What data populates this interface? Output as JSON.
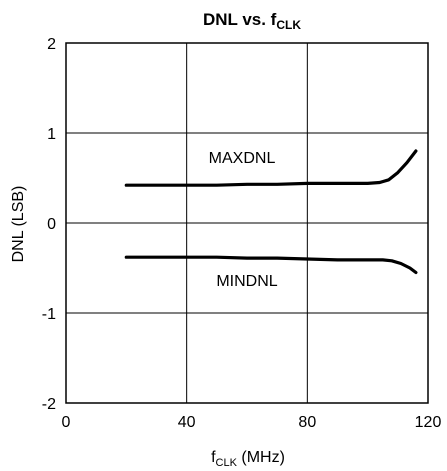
{
  "chart_data": {
    "type": "line",
    "title": {
      "main": "DNL vs. f",
      "sub": "CLK"
    },
    "xlabel": {
      "main": "f",
      "sub": "CLK",
      "rest": " (MHz)"
    },
    "ylabel": "DNL (LSB)",
    "xlim": [
      0,
      120
    ],
    "ylim": [
      -2,
      2
    ],
    "xticks": [
      0,
      40,
      80,
      120
    ],
    "yticks": [
      -2,
      -1,
      0,
      1,
      2
    ],
    "xtick_labels": [
      "0",
      "40",
      "80",
      "120"
    ],
    "ytick_labels": [
      "-2",
      "-1",
      "0",
      "1",
      "2"
    ],
    "grid": true,
    "series": [
      {
        "name": "MAXDNL",
        "x": [
          20,
          30,
          40,
          50,
          60,
          70,
          80,
          90,
          95,
          100,
          104,
          107,
          110,
          113,
          116
        ],
        "y": [
          0.42,
          0.42,
          0.42,
          0.42,
          0.43,
          0.43,
          0.44,
          0.44,
          0.44,
          0.44,
          0.45,
          0.48,
          0.56,
          0.67,
          0.8
        ]
      },
      {
        "name": "MINDNL",
        "x": [
          20,
          30,
          40,
          50,
          60,
          70,
          80,
          90,
          100,
          105,
          108,
          111,
          114,
          116
        ],
        "y": [
          -0.38,
          -0.38,
          -0.38,
          -0.38,
          -0.39,
          -0.39,
          -0.4,
          -0.41,
          -0.41,
          -0.41,
          -0.42,
          -0.45,
          -0.5,
          -0.55
        ]
      }
    ]
  }
}
